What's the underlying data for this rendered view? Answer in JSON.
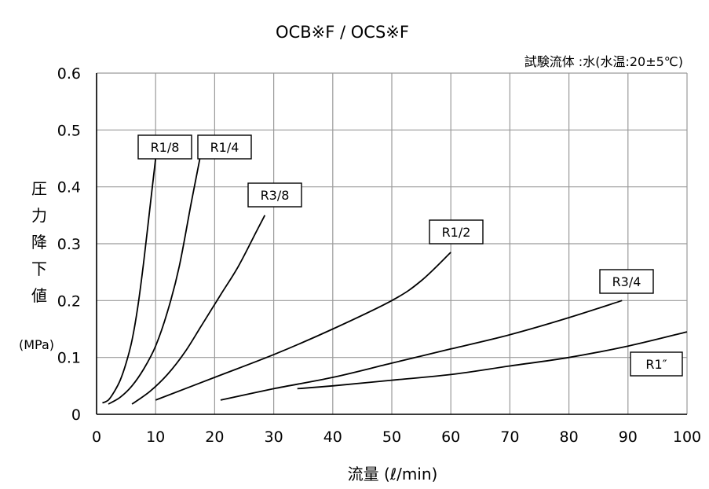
{
  "chart_data": {
    "type": "line",
    "title": "OCB※F / OCS※F",
    "note": "試験流体 :水(水温:20±5℃)",
    "xlabel": "流量 (ℓ/min)",
    "ylabel": "圧力降下値",
    "yunit": "(MPa)",
    "xlim": [
      0,
      100
    ],
    "ylim": [
      0,
      0.6
    ],
    "xticks": [
      "0",
      "10",
      "20",
      "30",
      "40",
      "50",
      "60",
      "70",
      "80",
      "90",
      "100"
    ],
    "yticks": [
      "0",
      "0.1",
      "0.2",
      "0.3",
      "0.4",
      "0.5",
      "0.6"
    ],
    "grid": true,
    "series": [
      {
        "name": "R1/8",
        "x": [
          1,
          2,
          3,
          4,
          5,
          6,
          7,
          8,
          9,
          10
        ],
        "y": [
          0.02,
          0.025,
          0.04,
          0.06,
          0.09,
          0.13,
          0.19,
          0.27,
          0.36,
          0.45
        ]
      },
      {
        "name": "R1/4",
        "x": [
          2,
          4,
          6,
          8,
          10,
          12,
          14,
          16,
          17.5
        ],
        "y": [
          0.018,
          0.03,
          0.05,
          0.08,
          0.12,
          0.18,
          0.26,
          0.37,
          0.45
        ]
      },
      {
        "name": "R3/8",
        "x": [
          6,
          9,
          12,
          15,
          18,
          21,
          24,
          27,
          28.5
        ],
        "y": [
          0.018,
          0.04,
          0.07,
          0.11,
          0.16,
          0.21,
          0.26,
          0.32,
          0.35
        ]
      },
      {
        "name": "R1/2",
        "x": [
          10,
          20,
          30,
          40,
          50,
          55,
          60
        ],
        "y": [
          0.025,
          0.065,
          0.105,
          0.15,
          0.2,
          0.235,
          0.285
        ]
      },
      {
        "name": "R3/4",
        "x": [
          21,
          30,
          40,
          50,
          60,
          70,
          80,
          89
        ],
        "y": [
          0.025,
          0.045,
          0.065,
          0.09,
          0.115,
          0.14,
          0.17,
          0.2
        ]
      },
      {
        "name": "R1″",
        "x": [
          34,
          40,
          50,
          60,
          70,
          80,
          90,
          100
        ],
        "y": [
          0.045,
          0.05,
          0.06,
          0.07,
          0.085,
          0.1,
          0.12,
          0.145
        ]
      }
    ]
  }
}
